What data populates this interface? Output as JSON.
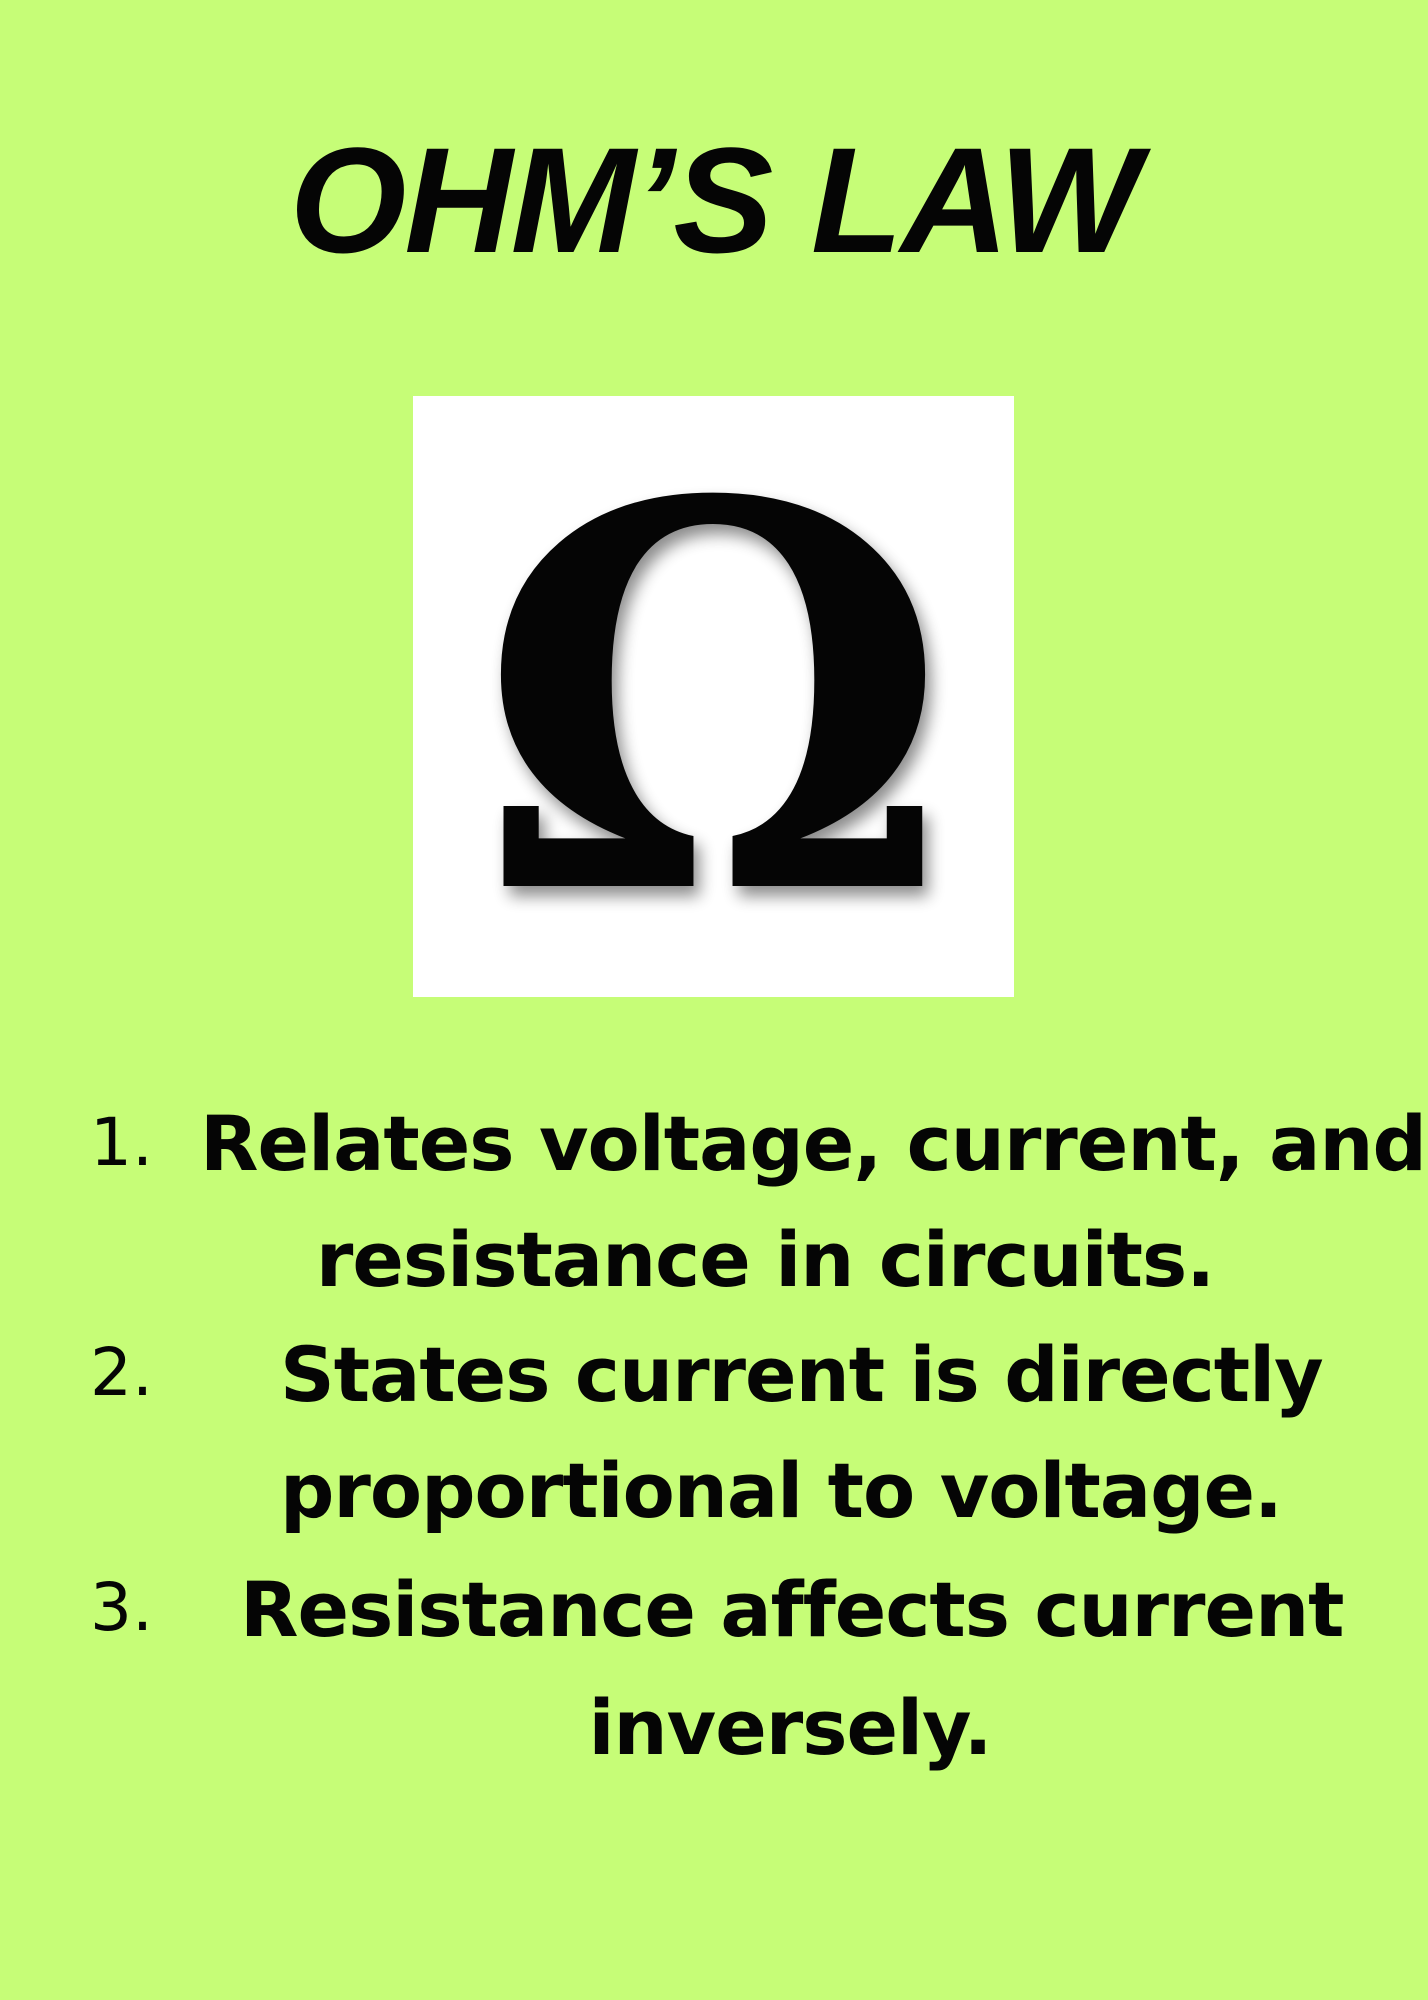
{
  "page": {
    "background_color": "#c6fd77",
    "text_color": "#050505"
  },
  "title": "OHM’S LAW",
  "symbol": {
    "glyph": "Ω",
    "icon": "omega-icon",
    "card_color": "#ffffff"
  },
  "list": {
    "items": [
      {
        "number": "1.",
        "line1": "Relates voltage, current, and",
        "line2": "resistance in circuits."
      },
      {
        "number": "2.",
        "line1": "States current is directly",
        "line2": "proportional to voltage."
      },
      {
        "number": "3.",
        "line1": "Resistance affects current",
        "line2": "inversely."
      }
    ]
  }
}
